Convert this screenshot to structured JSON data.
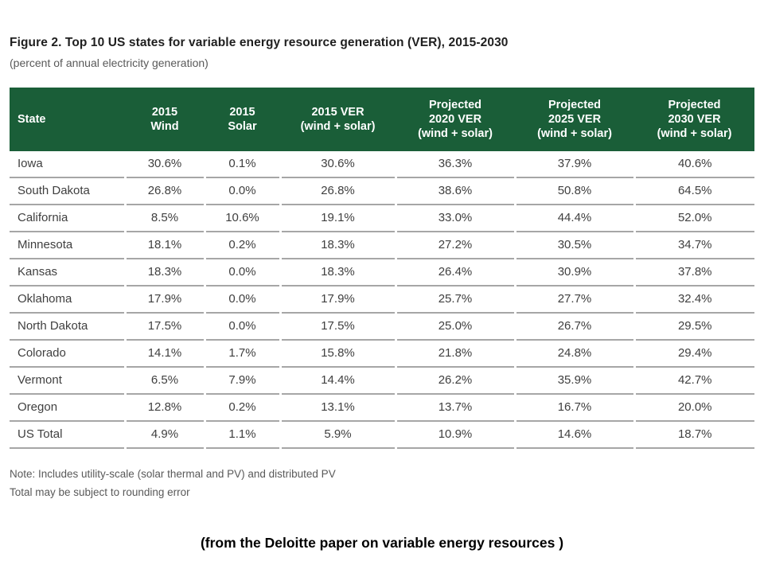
{
  "figure": {
    "title": "Figure 2. Top 10 US states for variable energy resource generation (VER), 2015-2030",
    "subtitle": "(percent of annual electricity generation)",
    "notes": [
      "Note: Includes utility-scale (solar thermal and PV) and distributed PV",
      "Total may be subject to rounding error"
    ],
    "caption": "(from the Deloitte paper on variable energy resources )"
  },
  "colors": {
    "header_bg": "#1a5e38",
    "header_text": "#ffffff",
    "body_text": "#3f3f3f",
    "row_border": "#a6a6a6",
    "note_text": "#595959"
  },
  "chart_data": {
    "type": "table",
    "columns": [
      {
        "label": "State",
        "lines": [
          "State"
        ]
      },
      {
        "label": "2015 Wind",
        "lines": [
          "2015",
          "Wind"
        ]
      },
      {
        "label": "2015 Solar",
        "lines": [
          "2015",
          "Solar"
        ]
      },
      {
        "label": "2015 VER (wind + solar)",
        "lines": [
          "2015 VER",
          "(wind + solar)"
        ]
      },
      {
        "label": "Projected 2020 VER (wind + solar)",
        "lines": [
          "Projected",
          "2020 VER",
          "(wind + solar)"
        ]
      },
      {
        "label": "Projected 2025 VER (wind + solar)",
        "lines": [
          "Projected",
          "2025 VER",
          "(wind + solar)"
        ]
      },
      {
        "label": "Projected 2030 VER (wind + solar)",
        "lines": [
          "Projected",
          "2030 VER",
          "(wind + solar)"
        ]
      }
    ],
    "rows": [
      {
        "cells": [
          "Iowa",
          "30.6%",
          "0.1%",
          "30.6%",
          "36.3%",
          "37.9%",
          "40.6%"
        ]
      },
      {
        "cells": [
          "South Dakota",
          "26.8%",
          "0.0%",
          "26.8%",
          "38.6%",
          "50.8%",
          "64.5%"
        ]
      },
      {
        "cells": [
          "California",
          "8.5%",
          "10.6%",
          "19.1%",
          "33.0%",
          "44.4%",
          "52.0%"
        ]
      },
      {
        "cells": [
          "Minnesota",
          "18.1%",
          "0.2%",
          "18.3%",
          "27.2%",
          "30.5%",
          "34.7%"
        ]
      },
      {
        "cells": [
          "Kansas",
          "18.3%",
          "0.0%",
          "18.3%",
          "26.4%",
          "30.9%",
          "37.8%"
        ]
      },
      {
        "cells": [
          "Oklahoma",
          "17.9%",
          "0.0%",
          "17.9%",
          "25.7%",
          "27.7%",
          "32.4%"
        ]
      },
      {
        "cells": [
          "North Dakota",
          "17.5%",
          "0.0%",
          "17.5%",
          "25.0%",
          "26.7%",
          "29.5%"
        ]
      },
      {
        "cells": [
          "Colorado",
          "14.1%",
          "1.7%",
          "15.8%",
          "21.8%",
          "24.8%",
          "29.4%"
        ]
      },
      {
        "cells": [
          "Vermont",
          "6.5%",
          "7.9%",
          "14.4%",
          "26.2%",
          "35.9%",
          "42.7%"
        ]
      },
      {
        "cells": [
          "Oregon",
          "12.8%",
          "0.2%",
          "13.1%",
          "13.7%",
          "16.7%",
          "20.0%"
        ]
      },
      {
        "cells": [
          "US Total",
          "4.9%",
          "1.1%",
          "5.9%",
          "10.9%",
          "14.6%",
          "18.7%"
        ]
      }
    ]
  }
}
